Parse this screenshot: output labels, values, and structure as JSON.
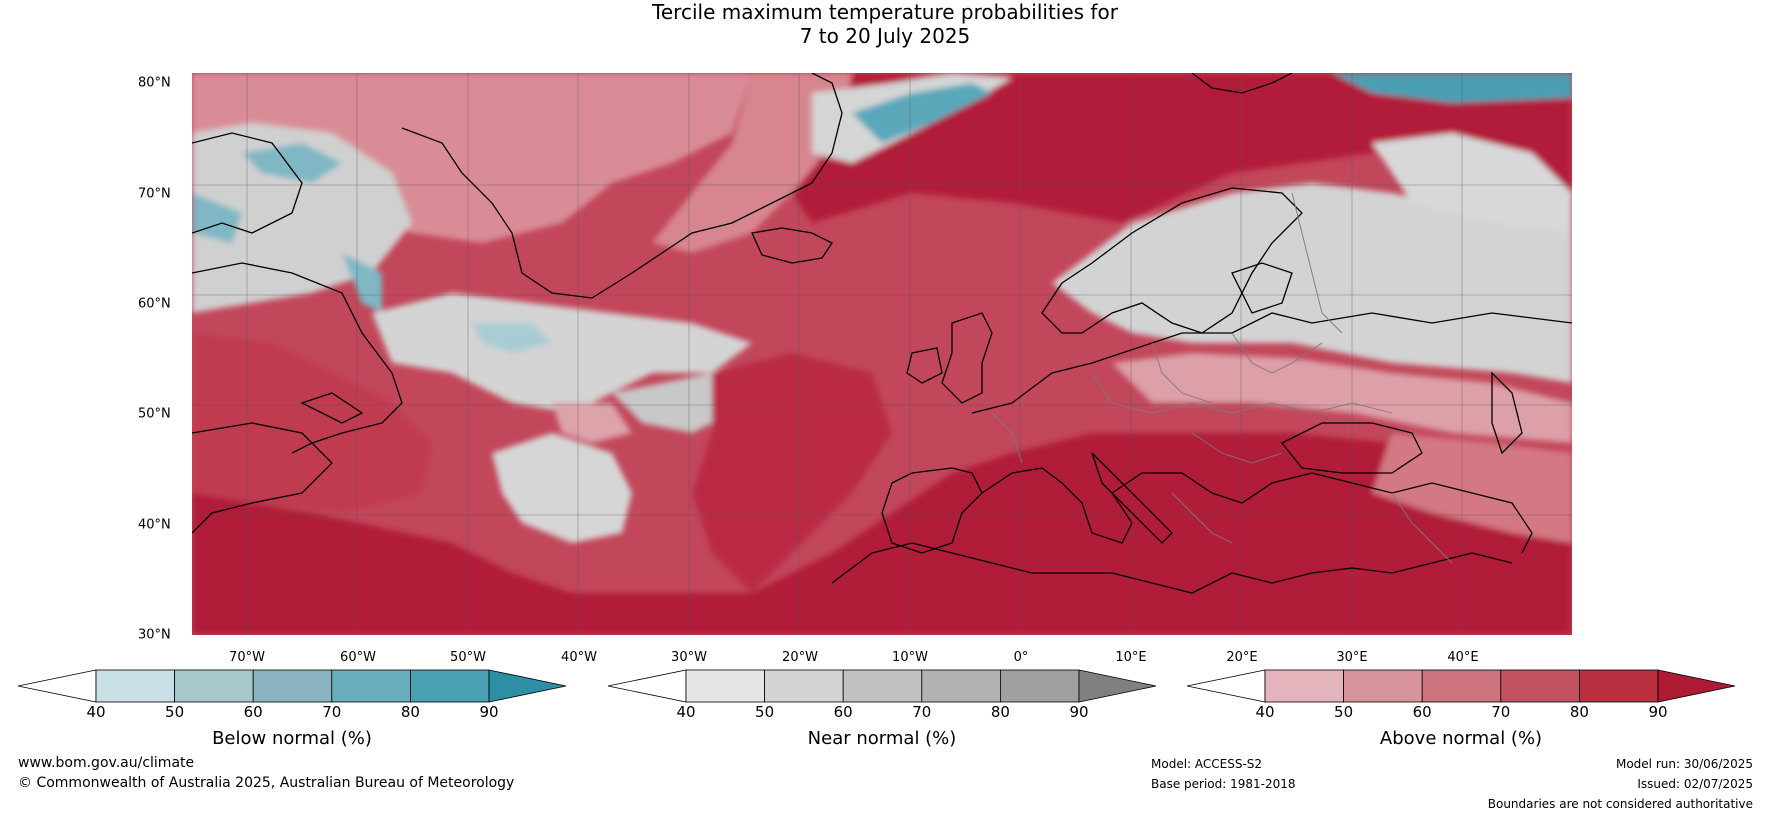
{
  "title": {
    "line1": "Tercile maximum temperature probabilities for",
    "line2": "7 to 20 July 2025"
  },
  "map": {
    "lat_labels": [
      "80°N",
      "70°N",
      "60°N",
      "50°N",
      "40°N",
      "30°N"
    ],
    "lon_labels": [
      "70°W",
      "60°W",
      "50°W",
      "40°W",
      "30°W",
      "20°W",
      "10°W",
      "0°",
      "10°E",
      "20°E",
      "30°E",
      "40°E"
    ],
    "colors": {
      "above_dark": "#b31c3a",
      "above_mid": "#c9525f",
      "above_light": "#dc8e96",
      "near": "#d4d4d4",
      "below": "#7cb6c4",
      "coast": "#000000",
      "border": "#888888"
    }
  },
  "colorbars": [
    {
      "title": "Below normal (%)",
      "ticks": [
        "40",
        "50",
        "60",
        "70",
        "80",
        "90"
      ],
      "colors": [
        "#ffffff",
        "#c8e0e6",
        "#a7c7cd",
        "#8bb3c2",
        "#6aaebd",
        "#4aa1b4",
        "#2e8ea4"
      ]
    },
    {
      "title": "Near normal (%)",
      "ticks": [
        "40",
        "50",
        "60",
        "70",
        "80",
        "90"
      ],
      "colors": [
        "#ffffff",
        "#e6e6e6",
        "#d4d4d4",
        "#c2c2c2",
        "#b2b2b2",
        "#a0a0a0",
        "#808080"
      ]
    },
    {
      "title": "Above normal (%)",
      "ticks": [
        "40",
        "50",
        "60",
        "70",
        "80",
        "90"
      ],
      "colors": [
        "#ffffff",
        "#e4b4bc",
        "#d9939b",
        "#cc737d",
        "#c2525f",
        "#b8303f",
        "#ad1a33"
      ]
    }
  ],
  "footer": {
    "website": "www.bom.gov.au/climate",
    "copyright": "© Commonwealth of Australia 2025, Australian Bureau of Meteorology",
    "model": "Model: ACCESS-S2",
    "base_period": "Base period: 1981-2018",
    "model_run": "Model run: 30/06/2025",
    "issued": "Issued: 02/07/2025",
    "disclaimer": "Boundaries are not considered authoritative"
  }
}
